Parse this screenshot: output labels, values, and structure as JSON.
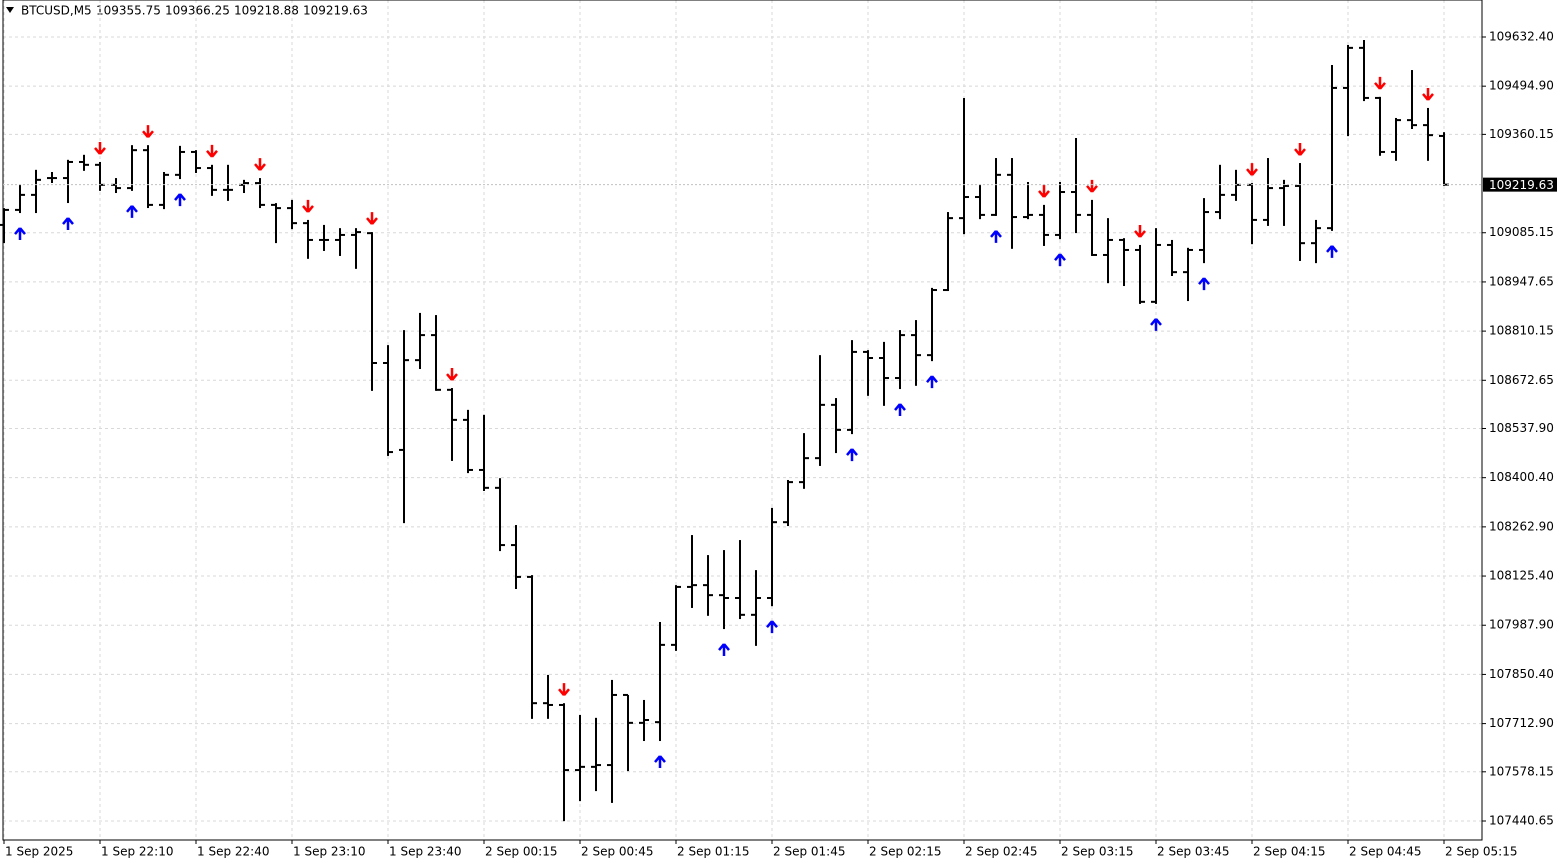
{
  "chart_data": {
    "type": "ohlc",
    "symbol": "BTCUSD,M5",
    "categories": [
      "1 Sep 2025",
      null,
      null,
      null,
      null,
      null,
      "1 Sep 22:10",
      null,
      null,
      null,
      null,
      null,
      "1 Sep 22:40",
      null,
      null,
      null,
      null,
      null,
      "1 Sep 23:10",
      null,
      null,
      null,
      null,
      null,
      "1 Sep 23:40",
      null,
      null,
      null,
      null,
      null,
      "2 Sep 00:15",
      null,
      null,
      null,
      null,
      null,
      "2 Sep 00:45",
      null,
      null,
      null,
      null,
      null,
      "2 Sep 01:15",
      null,
      null,
      null,
      null,
      null,
      "2 Sep 01:45",
      null,
      null,
      null,
      null,
      null,
      "2 Sep 02:15",
      null,
      null,
      null,
      null,
      null,
      "2 Sep 02:45",
      null,
      null,
      null,
      null,
      null,
      "2 Sep 03:15",
      null,
      null,
      null,
      null,
      null,
      "2 Sep 03:45",
      null,
      null,
      null,
      null,
      null,
      "2 Sep 04:15",
      null,
      null,
      null,
      null,
      null,
      "2 Sep 04:45",
      null,
      null,
      null,
      null,
      null,
      "2 Sep 05:15"
    ],
    "bars": [
      [
        109107,
        109154,
        109059,
        109149
      ],
      [
        109149,
        109219,
        109143,
        109191
      ],
      [
        109191,
        109261,
        109143,
        109233
      ],
      [
        109238,
        109255,
        109227,
        109238
      ],
      [
        109238,
        109289,
        109171,
        109283
      ],
      [
        109283,
        109303,
        109261,
        109275
      ],
      [
        109275,
        109283,
        109205,
        109219
      ],
      [
        109219,
        109238,
        109199,
        109210
      ],
      [
        109210,
        109330,
        109205,
        109316
      ],
      [
        109316,
        109330,
        109157,
        109163
      ],
      [
        109163,
        109255,
        109154,
        109247
      ],
      [
        109247,
        109328,
        109238,
        109311
      ],
      [
        109311,
        109316,
        109255,
        109266
      ],
      [
        109266,
        109275,
        109191,
        109205
      ],
      [
        109205,
        109275,
        109177,
        109205
      ],
      [
        109219,
        109233,
        109199,
        109224
      ],
      [
        109224,
        109238,
        109157,
        109163
      ],
      [
        109163,
        109168,
        109059,
        109154
      ],
      [
        109154,
        109177,
        109098,
        109112
      ],
      [
        109112,
        109121,
        109015,
        109065
      ],
      [
        109065,
        109107,
        109037,
        109065
      ],
      [
        109065,
        109098,
        109023,
        109079
      ],
      [
        109079,
        109098,
        108987,
        109087
      ],
      [
        109084,
        109087,
        108646,
        108721
      ],
      [
        108721,
        108771,
        108464,
        108472
      ],
      [
        108478,
        108813,
        108276,
        108729
      ],
      [
        108729,
        108861,
        108707,
        108799
      ],
      [
        108799,
        108855,
        108646,
        108646
      ],
      [
        108646,
        108651,
        108450,
        108562
      ],
      [
        108562,
        108590,
        108416,
        108422
      ],
      [
        108422,
        108576,
        108366,
        108372
      ],
      [
        108372,
        108399,
        108198,
        108212
      ],
      [
        108212,
        108268,
        108092,
        108123
      ],
      [
        108123,
        108128,
        107729,
        107770
      ],
      [
        107770,
        107849,
        107729,
        107765
      ],
      [
        107765,
        107770,
        107443,
        107583
      ],
      [
        107583,
        107737,
        107499,
        107592
      ],
      [
        107592,
        107729,
        107527,
        107597
      ],
      [
        107597,
        107835,
        107494,
        107793
      ],
      [
        107793,
        107793,
        107583,
        107715
      ],
      [
        107715,
        107779,
        107667,
        107723
      ],
      [
        107717,
        107997,
        107667,
        107933
      ],
      [
        107933,
        108100,
        107919,
        108095
      ],
      [
        108095,
        108240,
        108039,
        108100
      ],
      [
        108100,
        108184,
        108017,
        108072
      ],
      [
        108072,
        108198,
        107980,
        108064
      ],
      [
        108064,
        108226,
        108008,
        108017
      ],
      [
        108017,
        108142,
        107933,
        108064
      ],
      [
        108064,
        108316,
        108044,
        108276
      ],
      [
        108276,
        108394,
        108268,
        108388
      ],
      [
        108388,
        108525,
        108372,
        108455
      ],
      [
        108455,
        108743,
        108436,
        108604
      ],
      [
        108604,
        108623,
        108472,
        108534
      ],
      [
        108534,
        108785,
        108525,
        108752
      ],
      [
        108752,
        108757,
        108632,
        108735
      ],
      [
        108735,
        108780,
        108604,
        108679
      ],
      [
        108679,
        108813,
        108651,
        108799
      ],
      [
        108799,
        108841,
        108660,
        108743
      ],
      [
        108743,
        108931,
        108729,
        108925
      ],
      [
        108925,
        109143,
        108925,
        109126
      ],
      [
        109126,
        109462,
        109084,
        109185
      ],
      [
        109185,
        109219,
        109126,
        109135
      ],
      [
        109135,
        109294,
        109135,
        109247
      ],
      [
        109247,
        109294,
        109043,
        109129
      ],
      [
        109129,
        109227,
        109126,
        109135
      ],
      [
        109135,
        109163,
        109051,
        109079
      ],
      [
        109079,
        109227,
        109070,
        109199
      ],
      [
        109199,
        109350,
        109087,
        109135
      ],
      [
        109135,
        109177,
        109023,
        109023
      ],
      [
        109023,
        109126,
        108947,
        109065
      ],
      [
        109065,
        109070,
        108939,
        109037
      ],
      [
        109037,
        109051,
        108889,
        108892
      ],
      [
        108892,
        109098,
        108889,
        109051
      ],
      [
        109051,
        109065,
        108967,
        108975
      ],
      [
        108975,
        109043,
        108897,
        109037
      ],
      [
        109037,
        109182,
        109003,
        109143
      ],
      [
        109143,
        109275,
        109126,
        109191
      ],
      [
        109191,
        109261,
        109177,
        109219
      ],
      [
        109219,
        109224,
        109056,
        109121
      ],
      [
        109121,
        109294,
        109107,
        109210
      ],
      [
        109210,
        109233,
        109107,
        109216
      ],
      [
        109216,
        109280,
        109009,
        109056
      ],
      [
        109056,
        109121,
        109003,
        109098
      ],
      [
        109098,
        109554,
        109093,
        109490
      ],
      [
        109490,
        109610,
        109358,
        109602
      ],
      [
        109602,
        109624,
        109456,
        109462
      ],
      [
        109462,
        109465,
        109303,
        109311
      ],
      [
        109311,
        109406,
        109289,
        109400
      ],
      [
        109400,
        109540,
        109378,
        109386
      ],
      [
        109386,
        109434,
        109289,
        109358
      ],
      [
        109355.75,
        109366.25,
        109218.88,
        109219.63
      ]
    ],
    "signals": {
      "up": [
        1,
        4,
        8,
        11,
        41,
        45,
        48,
        53,
        56,
        58,
        62,
        66,
        72,
        75,
        83
      ],
      "down": [
        6,
        9,
        13,
        16,
        19,
        23,
        28,
        35,
        65,
        68,
        71,
        78,
        81,
        86,
        89
      ],
      "up_color": "#0000ff",
      "down_color": "#ff0000"
    },
    "color": "#000000",
    "ylim": [
      107387.5,
      109735.8
    ],
    "yticks": [
      {
        "value": 107440.65,
        "label": "107440.65"
      },
      107578.15,
      {
        "value": 107712.9,
        "label": "107712.90"
      },
      {
        "value": 107850.4,
        "label": "107850.40"
      },
      {
        "value": 107987.9,
        "label": "107987.90"
      },
      {
        "value": 108125.4,
        "label": "108125.40"
      },
      {
        "value": 108262.9,
        "label": "108262.90"
      },
      {
        "value": 108400.4,
        "label": "108400.40"
      },
      {
        "value": 108537.9,
        "label": "108537.90"
      },
      108672.65,
      108810.15,
      108947.65,
      109085.15,
      109360.15,
      {
        "value": 109494.9,
        "label": "109494.90"
      },
      {
        "value": 109632.4,
        "label": "109632.40"
      }
    ],
    "grid": true
  }
}
